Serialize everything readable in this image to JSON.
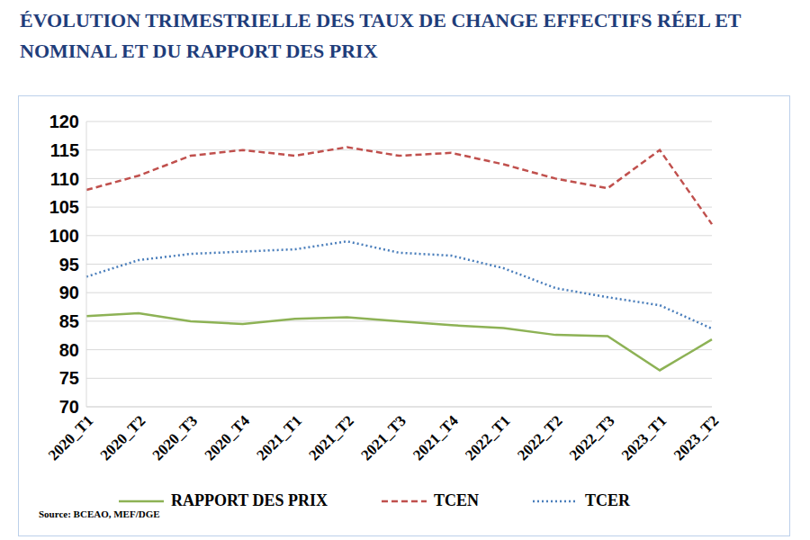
{
  "chart_data": {
    "type": "line",
    "title": "ÉVOLUTION TRIMESTRIELLE DES TAUX DE CHANGE EFFECTIFS RÉEL ET NOMINAL ET DU RAPPORT DES PRIX",
    "source": "Source: BCEAO, MEF/DGE",
    "categories": [
      "2020_T1",
      "2020_T2",
      "2020_T3",
      "2020_T4",
      "2021_T1",
      "2021_T2",
      "2021_T3",
      "2021_T4",
      "2022_T1",
      "2022_T2",
      "2022_T3",
      "2023_T1",
      "2023_T2"
    ],
    "series": [
      {
        "name": "TCER",
        "color": "#4a7ebb",
        "line_style": "dotted",
        "values": [
          92.8,
          95.7,
          96.8,
          97.2,
          97.6,
          99,
          97,
          96.5,
          94.3,
          90.8,
          89.2,
          87.8,
          83.7
        ]
      },
      {
        "name": "TCEN",
        "color": "#c0504d",
        "line_style": "dashed",
        "values": [
          108,
          110.5,
          114,
          115,
          114,
          115.5,
          114,
          114.5,
          112.5,
          110,
          108.3,
          115,
          102
        ]
      },
      {
        "name": "RAPPORT DES PRIX",
        "color": "#8db255",
        "line_style": "solid",
        "values": [
          85.9,
          86.4,
          85,
          84.5,
          85.4,
          85.7,
          85,
          84.3,
          83.8,
          82.6,
          82.4,
          76.4,
          81.8
        ]
      }
    ],
    "ylim": [
      70,
      120
    ],
    "yticks": [
      70,
      75,
      80,
      85,
      90,
      95,
      100,
      105,
      110,
      115,
      120
    ],
    "grid": true,
    "legend": "bottom"
  }
}
